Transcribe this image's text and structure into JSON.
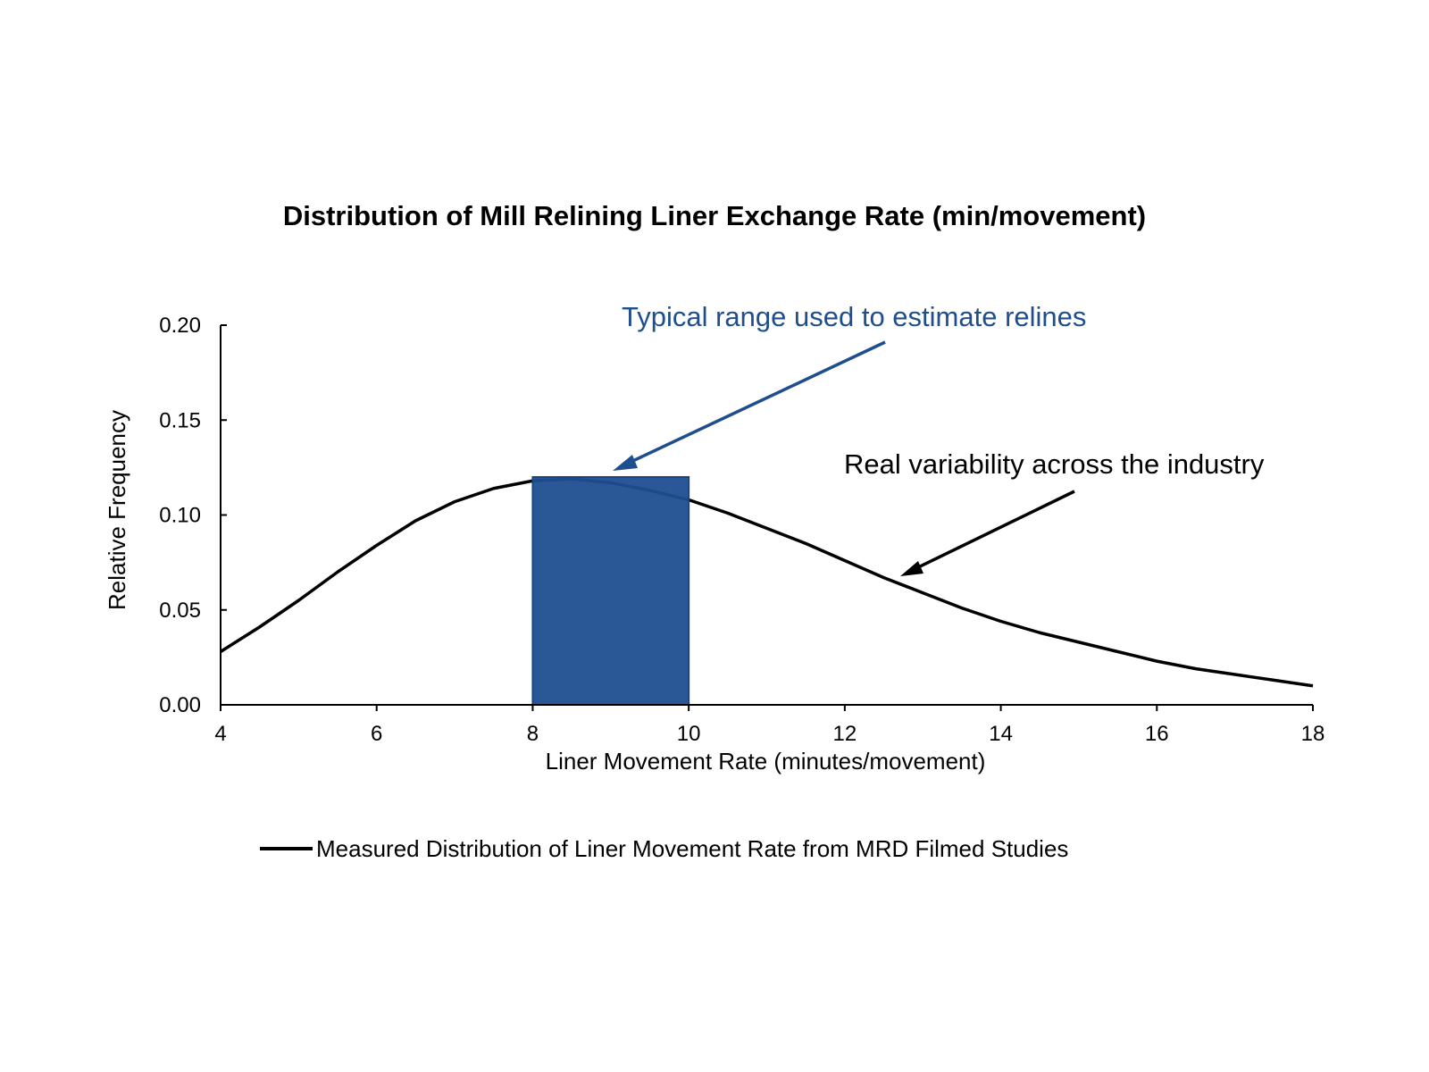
{
  "chart_data": {
    "type": "line",
    "title": "Distribution of Mill Relining Liner Exchange Rate (min/movement)",
    "xlabel": "Liner Movement Rate (minutes/movement)",
    "ylabel": "Relative Frequency",
    "xlim": [
      4,
      18
    ],
    "ylim": [
      0,
      0.2
    ],
    "xticks": [
      "4",
      "6",
      "8",
      "10",
      "12",
      "14",
      "16",
      "18"
    ],
    "yticks": [
      "0.00",
      "0.05",
      "0.10",
      "0.15",
      "0.20"
    ],
    "grid": false,
    "legend_position": "bottom",
    "series": [
      {
        "name": "Measured Distribution of Liner Movement Rate from MRD Filmed Studies",
        "color": "#000000",
        "x": [
          4,
          4.5,
          5,
          5.5,
          6,
          6.5,
          7,
          7.5,
          8,
          8.5,
          9,
          9.5,
          10,
          10.5,
          11,
          11.5,
          12,
          12.5,
          13,
          13.5,
          14,
          14.5,
          15,
          15.5,
          16,
          16.5,
          17,
          17.5,
          18
        ],
        "y": [
          0.028,
          0.041,
          0.055,
          0.07,
          0.084,
          0.097,
          0.107,
          0.114,
          0.118,
          0.119,
          0.117,
          0.113,
          0.108,
          0.101,
          0.093,
          0.085,
          0.076,
          0.067,
          0.059,
          0.051,
          0.044,
          0.038,
          0.033,
          0.028,
          0.023,
          0.019,
          0.016,
          0.013,
          0.01
        ]
      }
    ],
    "highlight_range": {
      "x": [
        8,
        10
      ],
      "height": 0.12,
      "color": "#1f4e8f"
    },
    "annotations": [
      {
        "text": "Typical range used to estimate relines",
        "color": "#1f4e8f"
      },
      {
        "text": "Real variability across the industry",
        "color": "#000000"
      }
    ]
  }
}
